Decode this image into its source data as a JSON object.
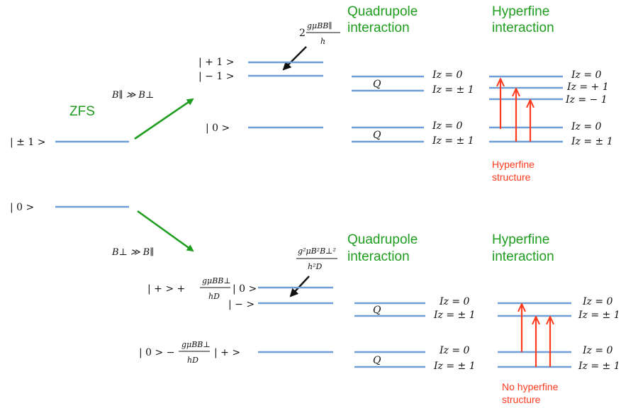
{
  "colors": {
    "level": "#6f9ed6",
    "green": "#1f9d1f",
    "red": "#ff3b1f",
    "black": "#111111"
  },
  "left": {
    "ket_pm1": "| ± 1 >",
    "ket_0": "| 0 >",
    "zfs_label": "ZFS"
  },
  "top": {
    "condition": "B∥ ≫ B⊥",
    "zeeman_formula_numerator": "gμBB∥",
    "zeeman_formula_prefix": "2",
    "zeeman_formula_denominator": "h",
    "ket_p1": "| + 1 >",
    "ket_m1": "| − 1 >",
    "ket_0": "| 0 >",
    "quadrupole_title_line1": "Quadrupole",
    "quadrupole_title_line2": "interaction",
    "hyperfine_title_line1": "Hyperfine",
    "hyperfine_title_line2": "interaction",
    "q_label": "Q",
    "iz_quad": [
      "Iz = 0",
      "Iz = ± 1",
      "Iz = 0",
      "Iz = ± 1"
    ],
    "iz_hyper": [
      "Iz = 0",
      "Iz = + 1",
      "Iz = − 1",
      "Iz = 0",
      "Iz = ± 1"
    ],
    "structure_note_line1": "Hyperfine",
    "structure_note_line2": "structure"
  },
  "bottom": {
    "condition": "B⊥ ≫ B∥",
    "shift_numerator": "g²μB²B⊥²",
    "shift_denominator": "h²D",
    "mix_upper_prefix": "| + > +",
    "mix_upper_numerator": "gμBB⊥",
    "mix_upper_denominator": "hD",
    "mix_upper_suffix": "| 0 >",
    "ket_minus": "| − >",
    "mix_lower_prefix": "| 0 > −",
    "mix_lower_numerator": "gμBB⊥",
    "mix_lower_denominator": "hD",
    "mix_lower_suffix": "| + >",
    "quadrupole_title_line1": "Quadrupole",
    "quadrupole_title_line2": "interaction",
    "hyperfine_title_line1": "Hyperfine",
    "hyperfine_title_line2": "interaction",
    "q_label": "Q",
    "iz_quad": [
      "Iz = 0",
      "Iz = ± 1",
      "Iz = 0",
      "Iz = ± 1"
    ],
    "iz_hyper": [
      "Iz = 0",
      "Iz = ± 1",
      "Iz = 0",
      "Iz = ± 1"
    ],
    "structure_note_line1": "No hyperfine",
    "structure_note_line2": "structure"
  }
}
